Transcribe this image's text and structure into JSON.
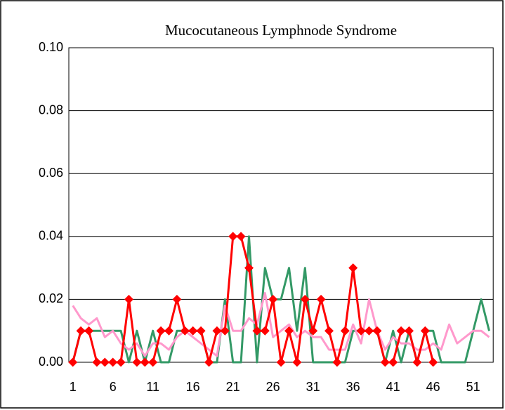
{
  "chart_data": {
    "type": "line",
    "title": "Mucocutaneous Lymphnode Syndrome",
    "categories": [
      "1",
      null,
      null,
      null,
      null,
      "6",
      null,
      null,
      null,
      null,
      "11",
      null,
      null,
      null,
      null,
      "16",
      null,
      null,
      null,
      null,
      "21",
      null,
      null,
      null,
      null,
      "26",
      null,
      null,
      null,
      null,
      "31",
      null,
      null,
      null,
      null,
      "36",
      null,
      null,
      null,
      null,
      "41",
      null,
      null,
      null,
      null,
      "46",
      null,
      null,
      null,
      null,
      "51",
      null,
      null
    ],
    "ylim": [
      0,
      0.1
    ],
    "yticks": [
      {
        "value": 0,
        "label": "0.00"
      },
      0.02,
      0.04,
      0.06,
      0.08,
      {
        "value": 0.1,
        "label": "0.10"
      }
    ],
    "grid": true,
    "series": [
      {
        "color": "#339966",
        "marker": false,
        "values": [
          0,
          0.01,
          0.01,
          0.01,
          0.01,
          0.01,
          0.01,
          0,
          0.01,
          0,
          0.01,
          0,
          0,
          0.01,
          0.01,
          0.01,
          0.01,
          0,
          0,
          0.02,
          0,
          0,
          0.04,
          0,
          0.03,
          0.02,
          0.02,
          0.03,
          0.01,
          0.03,
          0,
          0,
          0,
          0,
          0,
          0.01,
          0.01,
          0.01,
          0.01,
          0,
          0.01,
          0,
          0.01,
          0,
          0.01,
          0.01,
          0,
          0,
          0,
          0,
          0.01,
          0.02,
          0.01
        ]
      },
      {
        "color": "#ff99cc",
        "marker": false,
        "values": [
          0.018,
          0.014,
          0.012,
          0.014,
          0.008,
          0.01,
          0.006,
          0.004,
          0.006,
          0.002,
          0.006,
          0.006,
          0.004,
          0.008,
          0.01,
          0.008,
          0.006,
          0.004,
          0.002,
          0.018,
          0.01,
          0.01,
          0.014,
          0.012,
          0.022,
          0.008,
          0.01,
          0.012,
          0.008,
          0.01,
          0.008,
          0.008,
          0.004,
          0.004,
          0.004,
          0.012,
          0.006,
          0.02,
          0.01,
          0.004,
          0.008,
          0.006,
          0.006,
          0.004,
          0.004,
          0.006,
          0.004,
          0.012,
          0.006,
          0.008,
          0.01,
          0.01,
          0.008
        ]
      },
      {
        "color": "#ff0000",
        "marker": true,
        "values": [
          0,
          0.01,
          0.01,
          0,
          0,
          0,
          0,
          0.02,
          0,
          0,
          0,
          0.01,
          0.01,
          0.02,
          0.01,
          0.01,
          0.01,
          0,
          0.01,
          0.01,
          0.04,
          0.04,
          0.03,
          0.01,
          0.01,
          0.02,
          0,
          0.01,
          0,
          0.02,
          0.01,
          0.02,
          0.01,
          0,
          0.01,
          0.03,
          0.01,
          0.01,
          0.01,
          0,
          0,
          0.01,
          0.01,
          0,
          0.01,
          0,
          null,
          null,
          null,
          null,
          null,
          null,
          null
        ]
      }
    ]
  }
}
